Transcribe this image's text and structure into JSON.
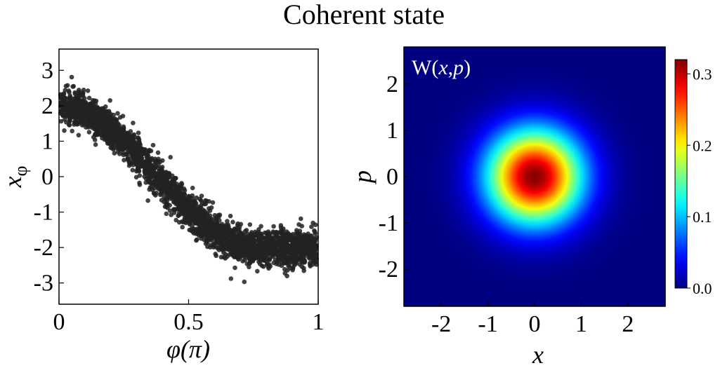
{
  "title": "Coherent state",
  "chart_data": [
    {
      "type": "scatter",
      "xlabel": "φ(π)",
      "ylabel": "x",
      "ylabel_sub": "φ",
      "xlim": [
        0,
        1
      ],
      "ylim": [
        -3.6,
        3.6
      ],
      "xticks": [
        0,
        0.5,
        1
      ],
      "xtick_labels": [
        "0",
        "0.5",
        "1"
      ],
      "yticks": [
        3,
        2,
        1,
        0,
        -1,
        -2,
        -3
      ],
      "ytick_labels": [
        "3",
        "2",
        "1",
        "0",
        "-1",
        "-2",
        "-3"
      ],
      "marker_color": "#222222",
      "series": [
        {
          "x": [
            0.0,
            0.02,
            0.04,
            0.06,
            0.08,
            0.1,
            0.12,
            0.14,
            0.16,
            0.18,
            0.2,
            0.22,
            0.24,
            0.26,
            0.28,
            0.3,
            0.32,
            0.34,
            0.36,
            0.38,
            0.4,
            0.42,
            0.44,
            0.46,
            0.48,
            0.5,
            0.52,
            0.54,
            0.56,
            0.58,
            0.6,
            0.62,
            0.64,
            0.66,
            0.68,
            0.7,
            0.72,
            0.74,
            0.76,
            0.78,
            0.8,
            0.82,
            0.84,
            0.86,
            0.88,
            0.9,
            0.92,
            0.94,
            0.96,
            0.98,
            1.0
          ],
          "y": [
            2.0,
            1.99,
            1.97,
            1.93,
            1.88,
            1.82,
            1.75,
            1.66,
            1.56,
            1.45,
            1.33,
            1.2,
            1.07,
            0.93,
            0.78,
            0.63,
            0.47,
            0.31,
            0.16,
            0.0,
            -0.16,
            -0.31,
            -0.47,
            -0.63,
            -0.78,
            -0.93,
            -1.07,
            -1.2,
            -1.33,
            -1.45,
            -1.56,
            -1.66,
            -1.75,
            -1.82,
            -1.88,
            -1.93,
            -1.97,
            -1.99,
            -2.0,
            -2.0,
            -2.0,
            -2.0,
            -2.0,
            -2.0,
            -2.0,
            -2.0,
            -2.0,
            -2.0,
            -2.0,
            -2.0,
            -2.0
          ],
          "spread": 0.5
        }
      ]
    },
    {
      "type": "heatmap",
      "label": "W(x,p)",
      "label_prefix": "W(",
      "label_x": "x",
      "label_sep": ",",
      "label_p": "p",
      "label_suffix": ")",
      "xlabel": "x",
      "ylabel": "p",
      "xlim": [
        -2.8,
        2.8
      ],
      "ylim": [
        -2.8,
        2.8
      ],
      "xticks": [
        -2,
        -1,
        0,
        1,
        2
      ],
      "xtick_labels": [
        "-2",
        "-1",
        "0",
        "1",
        "2"
      ],
      "yticks": [
        2,
        1,
        0,
        -1,
        -2
      ],
      "ytick_labels": [
        "2",
        "1",
        "0",
        "-1",
        "-2"
      ],
      "function": "gaussian",
      "center": [
        0,
        0
      ],
      "peak": 0.318,
      "variance": 0.5,
      "colormap": "jet",
      "colorbar": {
        "min": 0.0,
        "max": 0.32,
        "ticks": [
          0.3,
          0.2,
          0.1,
          0.0
        ],
        "tick_labels": [
          "0.3",
          "0.2",
          "0.1",
          "0.0"
        ]
      }
    }
  ]
}
